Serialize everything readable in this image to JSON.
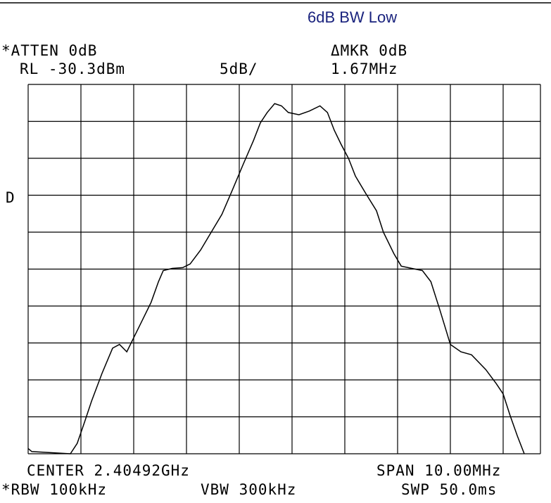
{
  "chart_data": {
    "type": "line",
    "title": "6dB BW Low",
    "annotations": [
      "*ATTEN 0dB",
      "RL -30.3dBm",
      "5dB/",
      "ΔMKR 0dB",
      "1.67MHz",
      "D",
      "CENTER 2.40492GHz",
      "SPAN 10.00MHz",
      "*RBW 100kHz",
      "VBW 300kHz",
      "SWP 50.0ms"
    ],
    "xlim": [
      2399.92,
      2409.92
    ],
    "ylim": [
      -80.3,
      -30.3
    ],
    "grid": true,
    "series": [
      {
        "color": "#000000",
        "x": [
          2399.92,
          2399.99,
          2400.72,
          2400.85,
          2400.99,
          2401.12,
          2401.32,
          2401.52,
          2401.65,
          2401.79,
          2401.92,
          2402.05,
          2402.25,
          2402.39,
          2402.48,
          2402.65,
          2402.85,
          2402.99,
          2403.19,
          2403.39,
          2403.59,
          2403.79,
          2403.99,
          2404.19,
          2404.32,
          2404.45,
          2404.59,
          2404.72,
          2404.85,
          2405.05,
          2405.25,
          2405.45,
          2405.59,
          2405.72,
          2405.85,
          2405.99,
          2406.12,
          2406.32,
          2406.52,
          2406.65,
          2406.85,
          2406.99,
          2407.19,
          2407.39,
          2407.55,
          2407.72,
          2407.92,
          2408.12,
          2408.32,
          2408.59,
          2408.79,
          2408.92,
          2409.05,
          2409.19,
          2409.32
        ],
        "values": [
          -79.6,
          -80.0,
          -80.3,
          -78.9,
          -76.0,
          -73.2,
          -69.4,
          -66.0,
          -65.5,
          -66.5,
          -64.6,
          -62.7,
          -59.8,
          -57.0,
          -55.5,
          -55.2,
          -55.1,
          -54.6,
          -52.7,
          -50.3,
          -47.9,
          -44.6,
          -41.2,
          -37.9,
          -35.5,
          -34.1,
          -32.9,
          -33.2,
          -34.1,
          -34.4,
          -33.9,
          -33.2,
          -34.1,
          -36.5,
          -38.4,
          -40.3,
          -42.7,
          -45.1,
          -47.4,
          -50.3,
          -53.2,
          -54.9,
          -55.2,
          -55.5,
          -57.0,
          -60.8,
          -65.5,
          -66.5,
          -66.9,
          -68.9,
          -70.8,
          -72.2,
          -75.1,
          -77.9,
          -80.3
        ]
      }
    ]
  }
}
